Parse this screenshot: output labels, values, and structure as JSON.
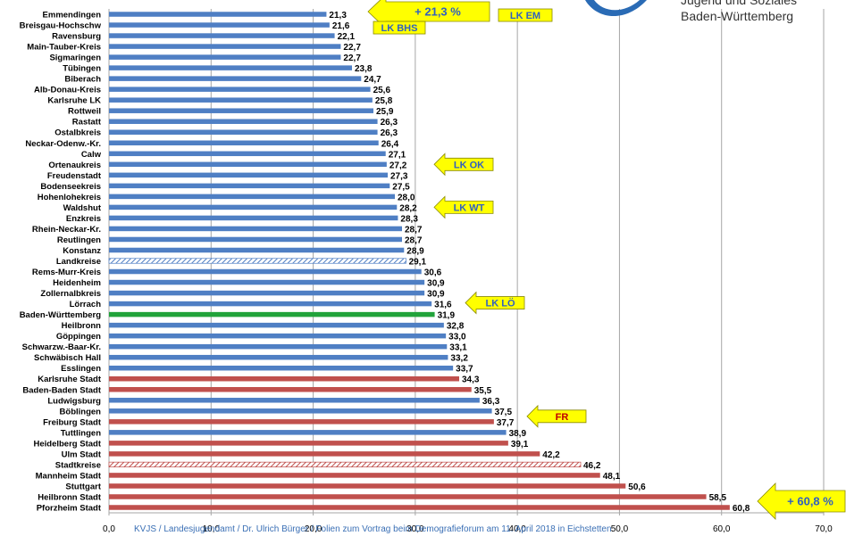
{
  "logo": {
    "line1": "Jugend und Soziales",
    "line2": "Baden-Württemberg"
  },
  "footer_text": "KVJS / Landesjugendamt / Dr. Ulrich Bürger / Folien zum Vortrag beim Demografieforum am 11. April 2018 in Eichstetten",
  "colors": {
    "landkreis": "#4f7fc4",
    "stadtkreis": "#c0504d",
    "state": "#21a33a",
    "callout_fill": "#ffff00",
    "callout_text": "#3060c0",
    "callout_text_red": "#c00000"
  },
  "chart_data": {
    "type": "bar",
    "orientation": "horizontal",
    "categories": [
      "Emmendingen",
      "Breisgau-Hochschw",
      "Ravensburg",
      "Main-Tauber-Kreis",
      "Sigmaringen",
      "Tübingen",
      "Biberach",
      "Alb-Donau-Kreis",
      "Karlsruhe LK",
      "Rottweil",
      "Rastatt",
      "Ostalbkreis",
      "Neckar-Odenw.-Kr.",
      "Calw",
      "Ortenaukreis",
      "Freudenstadt",
      "Bodenseekreis",
      "Hohenlohekreis",
      "Waldshut",
      "Enzkreis",
      "Rhein-Neckar-Kr.",
      "Reutlingen",
      "Konstanz",
      "Landkreise",
      "Rems-Murr-Kreis",
      "Heidenheim",
      "Zollernalbkreis",
      "Lörrach",
      "Baden-Württemberg",
      "Heilbronn",
      "Göppingen",
      "Schwarzw.-Baar-Kr.",
      "Schwäbisch Hall",
      "Esslingen",
      "Karlsruhe Stadt",
      "Baden-Baden Stadt",
      "Ludwigsburg",
      "Böblingen",
      "Freiburg Stadt",
      "Tuttlingen",
      "Heidelberg Stadt",
      "Ulm Stadt",
      "Stadtkreise",
      "Mannheim Stadt",
      "Stuttgart",
      "Heilbronn Stadt",
      "Pforzheim Stadt"
    ],
    "values": [
      21.3,
      21.6,
      22.1,
      22.7,
      22.7,
      23.8,
      24.7,
      25.6,
      25.8,
      25.9,
      26.3,
      26.3,
      26.4,
      27.1,
      27.2,
      27.3,
      27.5,
      28.0,
      28.2,
      28.3,
      28.7,
      28.7,
      28.9,
      29.1,
      30.6,
      30.9,
      30.9,
      31.6,
      31.9,
      32.8,
      33.0,
      33.1,
      33.2,
      33.7,
      34.3,
      35.5,
      36.3,
      37.5,
      37.7,
      38.9,
      39.1,
      42.2,
      46.2,
      48.1,
      50.6,
      58.5,
      60.8
    ],
    "value_labels": [
      "21,3",
      "21,6",
      "22,1",
      "22,7",
      "22,7",
      "23,8",
      "24,7",
      "25,6",
      "25,8",
      "25,9",
      "26,3",
      "26,3",
      "26,4",
      "27,1",
      "27,2",
      "27,3",
      "27,5",
      "28,0",
      "28,2",
      "28,3",
      "28,7",
      "28,7",
      "28,9",
      "29,1",
      "30,6",
      "30,9",
      "30,9",
      "31,6",
      "31,9",
      "32,8",
      "33,0",
      "33,1",
      "33,2",
      "33,7",
      "34,3",
      "35,5",
      "36,3",
      "37,5",
      "37,7",
      "38,9",
      "39,1",
      "42,2",
      "46,2",
      "48,1",
      "50,6",
      "58,5",
      "60,8"
    ],
    "bar_kinds": [
      "lk",
      "lk",
      "lk",
      "lk",
      "lk",
      "lk",
      "lk",
      "lk",
      "lk",
      "lk",
      "lk",
      "lk",
      "lk",
      "lk",
      "lk",
      "lk",
      "lk",
      "lk",
      "lk",
      "lk",
      "lk",
      "lk",
      "lk",
      "lk-agg",
      "lk",
      "lk",
      "lk",
      "lk",
      "state",
      "lk",
      "lk",
      "lk",
      "lk",
      "lk",
      "sk",
      "sk",
      "lk",
      "lk",
      "sk",
      "lk",
      "sk",
      "sk",
      "sk-agg",
      "sk",
      "sk",
      "sk",
      "sk"
    ],
    "xlim": [
      0,
      70
    ],
    "x_ticks": [
      0,
      10,
      20,
      30,
      40,
      50,
      60,
      70
    ],
    "x_tick_labels": [
      "0,0",
      "10,0",
      "20,0",
      "30,0",
      "40,0",
      "50,0",
      "60,0",
      "70,0"
    ],
    "grid": true,
    "legend": "none",
    "title": "",
    "xlabel": "",
    "ylabel": "",
    "annotations": [
      {
        "text": "+ 21,3 %",
        "target": "Emmendingen",
        "style": "arrow",
        "big": true
      },
      {
        "text": "LK EM",
        "target": "Emmendingen",
        "style": "box"
      },
      {
        "text": "LK BHS",
        "target": "Breisgau-Hochschw",
        "style": "box"
      },
      {
        "text": "LK OK",
        "target": "Ortenaukreis",
        "style": "arrow"
      },
      {
        "text": "LK WT",
        "target": "Waldshut",
        "style": "arrow"
      },
      {
        "text": "LK LÖ",
        "target": "Lörrach",
        "style": "arrow"
      },
      {
        "text": "FR",
        "target": "Freiburg Stadt",
        "style": "arrow",
        "red": true
      },
      {
        "text": "+ 60,8 %",
        "target": "Pforzheim Stadt",
        "style": "arrow",
        "big": true
      }
    ]
  }
}
